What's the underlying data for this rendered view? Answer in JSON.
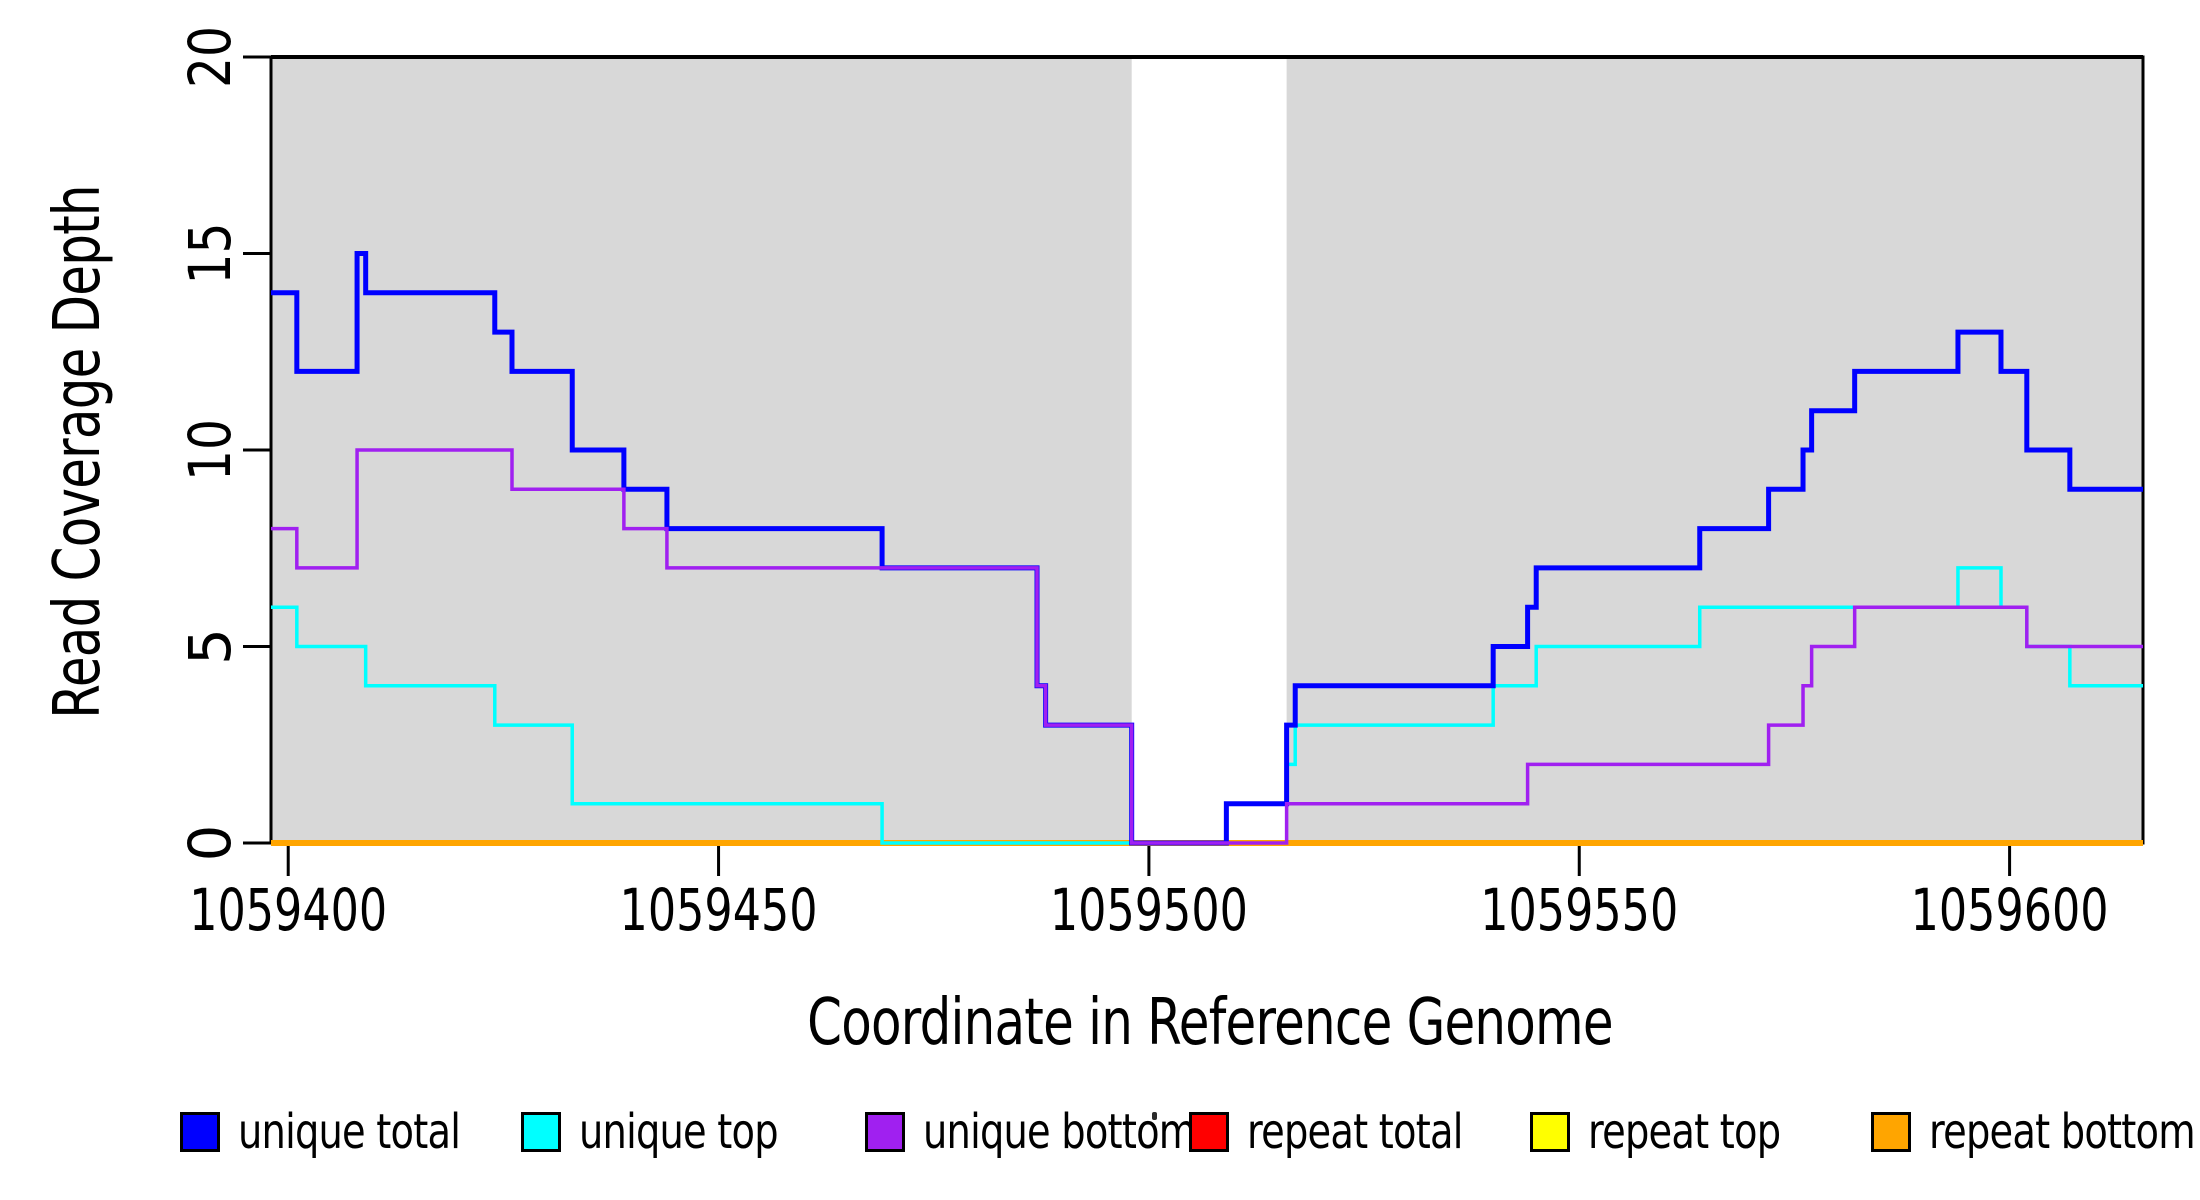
{
  "chart_data": {
    "type": "line",
    "subtype": "step-coverage-plot",
    "title": "",
    "xlabel": "Coordinate in Reference Genome",
    "ylabel": "Read Coverage Depth",
    "x_range": [
      1059398,
      1059615.5
    ],
    "y_range": [
      0,
      20
    ],
    "x_ticks": [
      1059400,
      1059450,
      1059500,
      1059550,
      1059600
    ],
    "x_tick_labels": [
      "1059400",
      "1059450",
      "1059500",
      "1059550",
      "1059600"
    ],
    "y_ticks": [
      0,
      5,
      10,
      15,
      20
    ],
    "y_tick_labels": [
      "0",
      "5",
      "10",
      "15",
      "20"
    ],
    "grid": false,
    "legend_position": "bottom",
    "shade_color": "#D8D8D8",
    "shaded_regions": [
      [
        1059398,
        1059498
      ],
      [
        1059516,
        1059615.5
      ]
    ],
    "draw_order": [
      "repeat top",
      "repeat total",
      "repeat bottom",
      "unique top",
      "unique total",
      "unique bottom"
    ],
    "series": [
      {
        "name": "unique total",
        "color": "#0000FF",
        "stroke_width": 5,
        "steps": [
          [
            1059398,
            14
          ],
          [
            1059401,
            12
          ],
          [
            1059408,
            15
          ],
          [
            1059409,
            14
          ],
          [
            1059424,
            13
          ],
          [
            1059426,
            12
          ],
          [
            1059433,
            10
          ],
          [
            1059439,
            9
          ],
          [
            1059444,
            8
          ],
          [
            1059469,
            7
          ],
          [
            1059487,
            4
          ],
          [
            1059488,
            3
          ],
          [
            1059498,
            0
          ],
          [
            1059509,
            1
          ],
          [
            1059516,
            3
          ],
          [
            1059517,
            4
          ],
          [
            1059540,
            5
          ],
          [
            1059544,
            6
          ],
          [
            1059545,
            7
          ],
          [
            1059564,
            8
          ],
          [
            1059572,
            9
          ],
          [
            1059576,
            10
          ],
          [
            1059577,
            11
          ],
          [
            1059582,
            12
          ],
          [
            1059594,
            13
          ],
          [
            1059599,
            12
          ],
          [
            1059602,
            10
          ],
          [
            1059607,
            9
          ]
        ]
      },
      {
        "name": "unique top",
        "color": "#00FFFF",
        "stroke_width": 3.5,
        "steps": [
          [
            1059398,
            6
          ],
          [
            1059401,
            5
          ],
          [
            1059409,
            4
          ],
          [
            1059424,
            3
          ],
          [
            1059433,
            1
          ],
          [
            1059469,
            0
          ],
          [
            1059509,
            1
          ],
          [
            1059516,
            2
          ],
          [
            1059517,
            3
          ],
          [
            1059540,
            4
          ],
          [
            1059545,
            5
          ],
          [
            1059564,
            6
          ],
          [
            1059594,
            7
          ],
          [
            1059599,
            6
          ],
          [
            1059602,
            5
          ],
          [
            1059607,
            4
          ]
        ]
      },
      {
        "name": "unique bottom",
        "color": "#A020F0",
        "stroke_width": 3.5,
        "steps": [
          [
            1059398,
            8
          ],
          [
            1059401,
            7
          ],
          [
            1059408,
            10
          ],
          [
            1059426,
            9
          ],
          [
            1059439,
            8
          ],
          [
            1059444,
            7
          ],
          [
            1059487,
            4
          ],
          [
            1059488,
            3
          ],
          [
            1059498,
            0
          ],
          [
            1059516,
            1
          ],
          [
            1059544,
            2
          ],
          [
            1059572,
            3
          ],
          [
            1059576,
            4
          ],
          [
            1059577,
            5
          ],
          [
            1059582,
            6
          ],
          [
            1059602,
            5
          ]
        ]
      },
      {
        "name": "repeat total",
        "color": "#FF0000",
        "stroke_width": 3.5,
        "steps": [
          [
            1059398,
            0
          ]
        ]
      },
      {
        "name": "repeat top",
        "color": "#FFFF00",
        "stroke_width": 3.5,
        "steps": [
          [
            1059398,
            0
          ]
        ]
      },
      {
        "name": "repeat bottom",
        "color": "#FFA500",
        "stroke_width": 6,
        "steps": [
          [
            1059398,
            0
          ]
        ]
      }
    ]
  },
  "axis": {
    "x_title": "Coordinate in Reference Genome",
    "y_title": "Read Coverage Depth"
  },
  "legend": {
    "items": [
      {
        "label": "unique total",
        "color": "#0000FF"
      },
      {
        "label": "unique top",
        "color": "#00FFFF"
      },
      {
        "label": "unique bottom",
        "color": "#A020F0"
      },
      {
        "label": "repeat total",
        "color": "#FF0000"
      },
      {
        "label": "repeat top",
        "color": "#FFFF00"
      },
      {
        "label": "repeat bottom",
        "color": "#FFA500"
      }
    ]
  }
}
